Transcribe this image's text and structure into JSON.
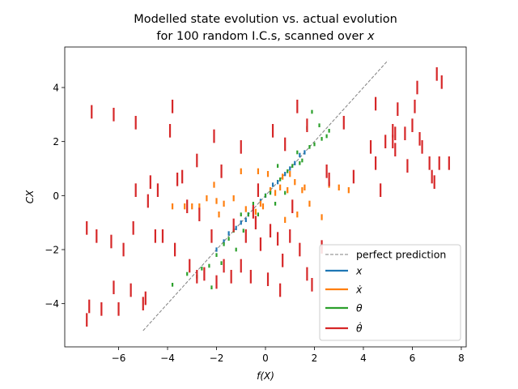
{
  "chart_data": {
    "type": "scatter",
    "title_line1": "Modelled state evolution vs. actual evolution",
    "title_line2_prefix": "for 100 random I.C.s, scanned over ",
    "title_line2_var": "x",
    "xlabel": "f(X)",
    "ylabel": "CX",
    "xlim": [
      -8.2,
      8.2
    ],
    "ylim": [
      -5.6,
      5.5
    ],
    "xticks": [
      -6,
      -4,
      -2,
      0,
      2,
      4,
      6,
      8
    ],
    "xtick_labels": [
      "−6",
      "−4",
      "−2",
      "0",
      "2",
      "4",
      "6",
      "8"
    ],
    "yticks": [
      -4,
      -2,
      0,
      2,
      4
    ],
    "ytick_labels": [
      "−4",
      "−2",
      "0",
      "2",
      "4"
    ],
    "grid": false,
    "legend_position": "lower-right",
    "perfect_prediction": {
      "name": "perfect prediction",
      "x": [
        -5,
        5
      ],
      "y": [
        -5,
        5
      ],
      "color": "#808080",
      "dash": true
    },
    "series": [
      {
        "name": "x",
        "color": "#1f77b4",
        "seglen": 0.16,
        "points": [
          [
            -2.0,
            -2.0
          ],
          [
            -1.7,
            -1.7
          ],
          [
            -1.2,
            -1.2
          ],
          [
            -0.7,
            -0.7
          ],
          [
            -0.5,
            -0.5
          ],
          [
            -0.2,
            -0.2
          ],
          [
            0.2,
            0.2
          ],
          [
            0.5,
            0.5
          ],
          [
            0.8,
            0.8
          ],
          [
            1.2,
            1.2
          ],
          [
            1.4,
            1.5
          ],
          [
            1.6,
            1.6
          ],
          [
            -1.0,
            -1.0
          ],
          [
            0.0,
            0.0
          ],
          [
            1.0,
            1.0
          ],
          [
            -1.5,
            -1.4
          ],
          [
            0.3,
            0.4
          ],
          [
            -0.8,
            -0.9
          ]
        ]
      },
      {
        "name": "ẋ",
        "color": "#ff7f0e",
        "seglen": 0.22,
        "points": [
          [
            -3.8,
            -0.4
          ],
          [
            -3.3,
            -0.4
          ],
          [
            -2.7,
            -0.4
          ],
          [
            -2.0,
            -0.2
          ],
          [
            -1.7,
            -0.3
          ],
          [
            -1.3,
            -0.1
          ],
          [
            -0.8,
            -0.5
          ],
          [
            -0.4,
            -0.6
          ],
          [
            -0.2,
            -0.3
          ],
          [
            0.2,
            0.2
          ],
          [
            0.4,
            0.1
          ],
          [
            0.6,
            0.3
          ],
          [
            0.9,
            0.2
          ],
          [
            1.2,
            0.5
          ],
          [
            1.5,
            0.2
          ],
          [
            1.8,
            -0.3
          ],
          [
            2.3,
            -0.8
          ],
          [
            3.0,
            0.3
          ],
          [
            3.4,
            0.2
          ],
          [
            -1.0,
            0.9
          ],
          [
            -0.3,
            0.9
          ],
          [
            0.7,
            0.7
          ],
          [
            1.0,
            0.8
          ],
          [
            -2.1,
            0.4
          ],
          [
            -1.9,
            -0.7
          ],
          [
            0.8,
            -0.9
          ],
          [
            1.3,
            -0.7
          ],
          [
            2.6,
            0.4
          ],
          [
            -0.1,
            -0.4
          ],
          [
            0.1,
            0.8
          ],
          [
            -2.4,
            -0.1
          ],
          [
            -3.0,
            -0.4
          ],
          [
            1.6,
            0.3
          ]
        ]
      },
      {
        "name": "θ",
        "color": "#2ca02c",
        "seglen": 0.14,
        "points": [
          [
            -3.2,
            -2.9
          ],
          [
            -2.8,
            -3.0
          ],
          [
            -2.6,
            -2.7
          ],
          [
            -2.3,
            -2.6
          ],
          [
            -2.0,
            -2.2
          ],
          [
            -1.7,
            -1.8
          ],
          [
            -1.3,
            -1.3
          ],
          [
            -1.5,
            -1.6
          ],
          [
            -1.0,
            -0.7
          ],
          [
            -0.7,
            -0.7
          ],
          [
            -0.5,
            -0.3
          ],
          [
            0.0,
            0.0
          ],
          [
            0.2,
            0.1
          ],
          [
            0.6,
            0.6
          ],
          [
            0.9,
            0.9
          ],
          [
            1.1,
            1.1
          ],
          [
            1.5,
            1.3
          ],
          [
            1.8,
            1.8
          ],
          [
            2.0,
            1.9
          ],
          [
            2.3,
            2.1
          ],
          [
            2.6,
            2.4
          ],
          [
            1.9,
            3.1
          ],
          [
            1.7,
            2.5
          ],
          [
            2.2,
            2.6
          ],
          [
            -1.2,
            -2.0
          ],
          [
            -0.9,
            -1.3
          ],
          [
            0.4,
            -0.3
          ],
          [
            1.3,
            1.6
          ],
          [
            -3.8,
            -3.3
          ],
          [
            -2.2,
            -3.4
          ],
          [
            -1.8,
            -2.5
          ],
          [
            0.8,
            0.1
          ],
          [
            0.5,
            1.1
          ],
          [
            1.4,
            1.2
          ],
          [
            -0.3,
            -0.7
          ],
          [
            2.5,
            2.2
          ]
        ]
      },
      {
        "name": "θ̇",
        "color": "#d62728",
        "seglen": 0.5,
        "points": [
          [
            -7.3,
            -1.2
          ],
          [
            -7.2,
            -4.1
          ],
          [
            -7.3,
            -4.6
          ],
          [
            -7.1,
            3.1
          ],
          [
            -6.9,
            -1.5
          ],
          [
            -6.7,
            -4.2
          ],
          [
            -6.3,
            -1.7
          ],
          [
            -6.2,
            -3.4
          ],
          [
            -6.2,
            3.0
          ],
          [
            -6.0,
            -4.2
          ],
          [
            -5.8,
            -2.0
          ],
          [
            -5.5,
            -3.5
          ],
          [
            -5.4,
            -1.2
          ],
          [
            -5.3,
            2.7
          ],
          [
            -5.3,
            0.2
          ],
          [
            -5.0,
            -4.0
          ],
          [
            -4.9,
            -3.8
          ],
          [
            -4.8,
            -0.2
          ],
          [
            -4.7,
            0.5
          ],
          [
            -4.5,
            -1.5
          ],
          [
            -4.4,
            0.2
          ],
          [
            -4.2,
            -1.5
          ],
          [
            -3.9,
            2.4
          ],
          [
            -3.8,
            3.3
          ],
          [
            -3.7,
            -2.0
          ],
          [
            -3.6,
            0.6
          ],
          [
            -3.4,
            0.7
          ],
          [
            -3.2,
            -0.4
          ],
          [
            -3.1,
            -2.6
          ],
          [
            -2.8,
            1.3
          ],
          [
            -2.8,
            -3.0
          ],
          [
            -2.5,
            -2.9
          ],
          [
            -2.2,
            -1.5
          ],
          [
            -2.1,
            2.2
          ],
          [
            -2.0,
            -3.2
          ],
          [
            -1.7,
            -2.6
          ],
          [
            -1.4,
            -3.0
          ],
          [
            -1.3,
            -1.1
          ],
          [
            -1.0,
            1.8
          ],
          [
            -1.0,
            -2.6
          ],
          [
            -0.8,
            -1.5
          ],
          [
            -0.6,
            -3.0
          ],
          [
            -0.5,
            -0.6
          ],
          [
            -0.3,
            0.2
          ],
          [
            -0.2,
            -1.8
          ],
          [
            0.1,
            -3.1
          ],
          [
            0.2,
            -1.3
          ],
          [
            0.5,
            -1.6
          ],
          [
            0.6,
            -3.5
          ],
          [
            0.7,
            -2.4
          ],
          [
            0.8,
            1.9
          ],
          [
            1.0,
            -1.5
          ],
          [
            1.1,
            -0.4
          ],
          [
            1.4,
            -2.0
          ],
          [
            1.7,
            -2.9
          ],
          [
            1.7,
            2.6
          ],
          [
            1.9,
            -3.3
          ],
          [
            2.3,
            -1.9
          ],
          [
            2.5,
            0.9
          ],
          [
            2.6,
            0.6
          ],
          [
            3.2,
            2.7
          ],
          [
            3.6,
            0.7
          ],
          [
            4.3,
            1.8
          ],
          [
            4.5,
            3.4
          ],
          [
            4.5,
            1.2
          ],
          [
            4.7,
            0.2
          ],
          [
            4.9,
            2.0
          ],
          [
            5.2,
            2.4
          ],
          [
            5.2,
            2.0
          ],
          [
            5.3,
            1.7
          ],
          [
            5.3,
            2.3
          ],
          [
            5.4,
            3.2
          ],
          [
            5.7,
            2.3
          ],
          [
            5.8,
            1.1
          ],
          [
            6.0,
            2.6
          ],
          [
            6.1,
            3.3
          ],
          [
            6.2,
            4.0
          ],
          [
            6.3,
            2.1
          ],
          [
            6.4,
            1.8
          ],
          [
            6.7,
            1.2
          ],
          [
            6.8,
            0.7
          ],
          [
            6.9,
            0.5
          ],
          [
            7.0,
            4.5
          ],
          [
            7.1,
            1.2
          ],
          [
            7.2,
            4.2
          ],
          [
            7.5,
            1.2
          ],
          [
            -2.7,
            -0.7
          ],
          [
            -1.8,
            0.9
          ],
          [
            -0.4,
            -1.0
          ],
          [
            0.3,
            2.4
          ],
          [
            1.3,
            3.3
          ]
        ]
      }
    ]
  }
}
